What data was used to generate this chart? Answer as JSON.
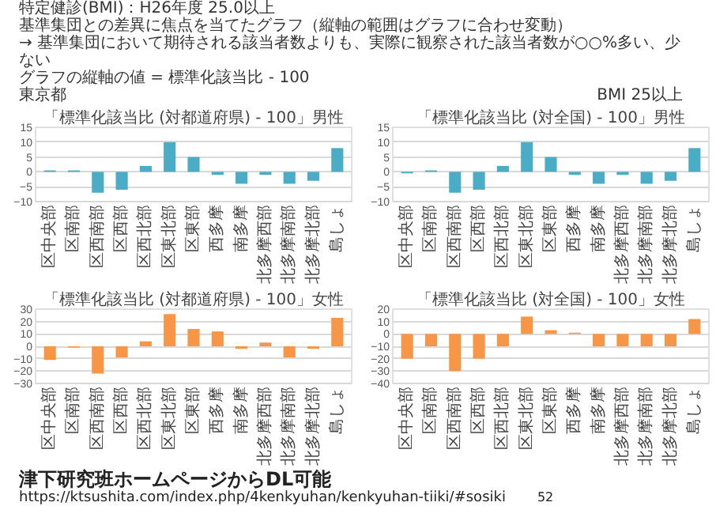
{
  "chart_data": [
    {
      "type": "bar",
      "title": "「標準化該当比 (対都道府県) - 100」男性",
      "categories": [
        "区中央部",
        "区南部",
        "区西南部",
        "区西部",
        "区西北部",
        "区東北部",
        "区東部",
        "西多摩",
        "南多摩",
        "北多摩西部",
        "北多摩南部",
        "北多摩北部",
        "島しょ"
      ],
      "values": [
        0.5,
        0.5,
        -7,
        -6,
        2,
        10,
        5,
        -1,
        -4,
        -1,
        -4,
        -3,
        8
      ],
      "color": "#4bacc6",
      "ylim": [
        -10,
        15
      ],
      "yticks": [
        -10,
        -5,
        0,
        5,
        10,
        15
      ],
      "grid": "y",
      "annotations": [
        "特定健診(BMI)：H26年度 25.0以上",
        "基準集団との差異に焦点を当てたグラフ（縦軸の範囲はグラフに合わせ変動）",
        "→ 基準集団において期待される該当者数よりも、実際に観察された該当者数が○○%多い、少ない",
        "グラフの縦軸の値 = 標準化該当比 - 100",
        "東京都",
        "BMI 25以上"
      ]
    },
    {
      "type": "bar",
      "title": "「標準化該当比 (対全国) - 100」男性",
      "categories": [
        "区中央部",
        "区南部",
        "区西南部",
        "区西部",
        "区西北部",
        "区東北部",
        "区東部",
        "西多摩",
        "南多摩",
        "北多摩西部",
        "北多摩南部",
        "北多摩北部",
        "島しょ"
      ],
      "values": [
        -0.5,
        0.5,
        -7,
        -6,
        2,
        10,
        5,
        -1,
        -4,
        -1,
        -4,
        -3,
        8
      ],
      "color": "#4bacc6",
      "ylim": [
        -10,
        15
      ],
      "yticks": [
        -10,
        -5,
        0,
        5,
        10,
        15
      ],
      "grid": "y"
    },
    {
      "type": "bar",
      "title": "「標準化該当比 (対都道府県) - 100」女性",
      "categories": [
        "区中央部",
        "区南部",
        "区西南部",
        "区西部",
        "区西北部",
        "区東北部",
        "区東部",
        "西多摩",
        "南多摩",
        "北多摩西部",
        "北多摩南部",
        "北多摩北部",
        "島しょ"
      ],
      "values": [
        -11,
        -1,
        -22,
        -9,
        4,
        26,
        14,
        12,
        -2,
        3,
        -9,
        -2,
        23
      ],
      "color": "#f79646",
      "ylim": [
        -30,
        30
      ],
      "yticks": [
        -30,
        -20,
        -10,
        0,
        10,
        20,
        30
      ],
      "grid": "y"
    },
    {
      "type": "bar",
      "title": "「標準化該当比 (対全国) - 100」女性",
      "categories": [
        "区中央部",
        "区南部",
        "区西南部",
        "区西部",
        "区西北部",
        "区東北部",
        "区東部",
        "西多摩",
        "南多摩",
        "北多摩西部",
        "北多摩南部",
        "北多摩北部",
        "島しょ"
      ],
      "values": [
        -20,
        -10,
        -30,
        -20,
        -10,
        14,
        3,
        1,
        -10,
        -10,
        -10,
        -10,
        12
      ],
      "color": "#f79646",
      "ylim": [
        -40,
        20
      ],
      "yticks": [
        -40,
        -30,
        -20,
        -10,
        0,
        10,
        20
      ],
      "grid": "y",
      "annotations": [
        "津下研究班ホームページからDL可能",
        "https://ktsushita.com/index.php/4kenkyuhan/kenkyuhan-tiiki/#sosiki",
        "52"
      ]
    }
  ]
}
